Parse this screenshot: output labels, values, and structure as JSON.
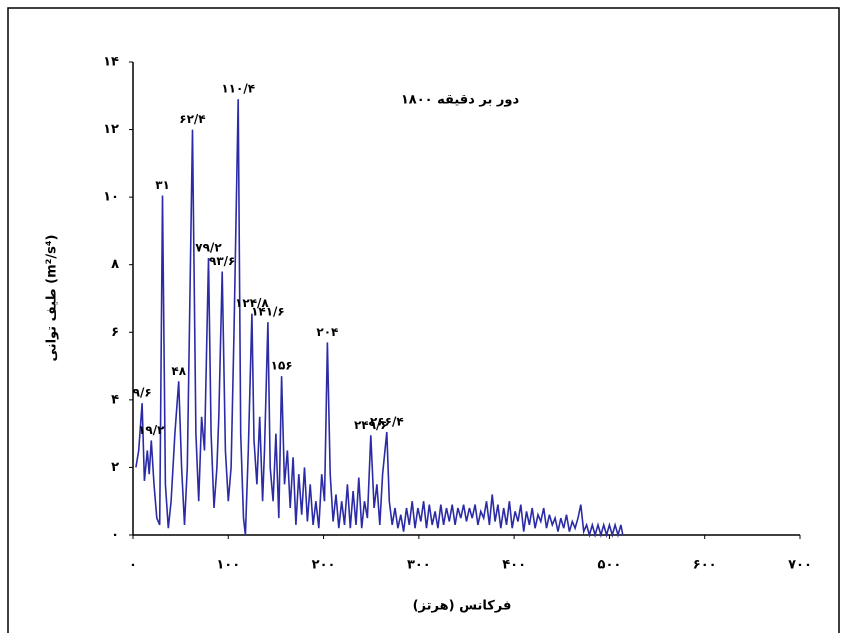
{
  "chart_data": {
    "type": "line",
    "title": "۱۸۰۰ دور بر دقیقه",
    "x_label": "فرکانس (هرتز)",
    "y_label": "طیف توانی (m²/s⁴)",
    "color": "#2b2ba6",
    "x": [
      3,
      6,
      9.6,
      12,
      15,
      17,
      19.2,
      22,
      25,
      28,
      31,
      34,
      37,
      40,
      44,
      48,
      51,
      54,
      57,
      62.4,
      66,
      69,
      72,
      75,
      79.2,
      82,
      85,
      88,
      90,
      93.6,
      97,
      100,
      103,
      106,
      110.4,
      113,
      116,
      118,
      121,
      124.8,
      127,
      130,
      133,
      136,
      138,
      141.6,
      144,
      147,
      150,
      153,
      156,
      159,
      162,
      165,
      168,
      171,
      174,
      177,
      180,
      183,
      186,
      189,
      192,
      195,
      198,
      201,
      204,
      207,
      210,
      213,
      216,
      219,
      222,
      225,
      228,
      231,
      234,
      237,
      240,
      243,
      246,
      249.6,
      253,
      256,
      259,
      262,
      266.4,
      269,
      272,
      275,
      278,
      281,
      284,
      287,
      290,
      293,
      296,
      299,
      302,
      305,
      308,
      311,
      314,
      317,
      320,
      323,
      326,
      329,
      332,
      335,
      338,
      341,
      344,
      347,
      350,
      353,
      356,
      359,
      362,
      365,
      368,
      371,
      374,
      377,
      380,
      383,
      386,
      389,
      392,
      395,
      398,
      401,
      404,
      407,
      410,
      413,
      416,
      419,
      422,
      425,
      428,
      431,
      434,
      437,
      440,
      443,
      446,
      449,
      452,
      455,
      458,
      461,
      464,
      467,
      470,
      473,
      476,
      479,
      482,
      485,
      488,
      491,
      494,
      497,
      500,
      503,
      506,
      509,
      512,
      514
    ],
    "values": [
      2.0,
      2.5,
      3.9,
      1.6,
      2.5,
      1.8,
      2.8,
      1.5,
      0.5,
      0.3,
      10.05,
      1.5,
      0.2,
      1.0,
      3.0,
      4.55,
      2.0,
      0.3,
      2.0,
      12.0,
      3.0,
      1.0,
      3.5,
      2.5,
      8.2,
      3.0,
      0.8,
      2.0,
      3.5,
      7.8,
      2.5,
      1.0,
      2.0,
      6.0,
      12.9,
      3.0,
      0.5,
      0.0,
      2.5,
      6.55,
      2.8,
      1.5,
      3.5,
      1.0,
      2.5,
      6.3,
      2.0,
      1.0,
      3.0,
      0.5,
      4.7,
      1.5,
      2.5,
      0.8,
      2.3,
      0.3,
      1.8,
      0.6,
      2.0,
      0.4,
      1.5,
      0.3,
      1.0,
      0.2,
      1.8,
      1.0,
      5.7,
      1.8,
      0.4,
      1.2,
      0.2,
      1.0,
      0.3,
      1.5,
      0.2,
      1.3,
      0.3,
      1.7,
      0.2,
      1.0,
      0.5,
      2.95,
      0.8,
      1.5,
      0.3,
      1.8,
      3.05,
      1.0,
      0.3,
      0.8,
      0.2,
      0.6,
      0.1,
      0.8,
      0.3,
      1.0,
      0.2,
      0.8,
      0.4,
      1.0,
      0.2,
      0.9,
      0.3,
      0.7,
      0.2,
      0.9,
      0.3,
      0.8,
      0.4,
      0.9,
      0.3,
      0.8,
      0.5,
      0.9,
      0.4,
      0.8,
      0.5,
      0.9,
      0.3,
      0.7,
      0.5,
      1.0,
      0.3,
      1.2,
      0.4,
      0.9,
      0.2,
      0.8,
      0.3,
      1.0,
      0.2,
      0.7,
      0.4,
      0.9,
      0.1,
      0.7,
      0.3,
      0.8,
      0.2,
      0.6,
      0.4,
      0.8,
      0.2,
      0.6,
      0.3,
      0.5,
      0.1,
      0.5,
      0.2,
      0.6,
      0.1,
      0.4,
      0.2,
      0.5,
      0.9,
      0.1,
      0.3,
      0.0,
      0.3,
      0.0,
      0.3,
      0.0,
      0.3,
      0.0,
      0.3,
      0.0,
      0.3,
      0.0,
      0.3,
      0.0
    ],
    "xlim": [
      0,
      700
    ],
    "xticks": [
      {
        "value": 0,
        "label": "۰"
      },
      {
        "value": 100,
        "label": "۱۰۰"
      },
      {
        "value": 200,
        "label": "۲۰۰"
      },
      {
        "value": 300,
        "label": "۳۰۰"
      },
      {
        "value": 400,
        "label": "۴۰۰"
      },
      {
        "value": 500,
        "label": "۵۰۰"
      },
      {
        "value": 600,
        "label": "۶۰۰"
      },
      {
        "value": 700,
        "label": "۷۰۰"
      }
    ],
    "ylim": [
      0,
      14
    ],
    "yticks": [
      {
        "value": 0,
        "label": "۰"
      },
      {
        "value": 2,
        "label": "۲"
      },
      {
        "value": 4,
        "label": "۴"
      },
      {
        "value": 6,
        "label": "۶"
      },
      {
        "value": 8,
        "label": "۸"
      },
      {
        "value": 10,
        "label": "۱۰"
      },
      {
        "value": 12,
        "label": "۱۲"
      },
      {
        "value": 14,
        "label": "۱۴"
      }
    ],
    "annotations": [
      {
        "label": "۹/۶",
        "x": 9.6,
        "y": 3.9
      },
      {
        "label": "۱۹/۲",
        "x": 19.2,
        "y": 2.8
      },
      {
        "label": "۳۱",
        "x": 31,
        "y": 10.05
      },
      {
        "label": "۴۸",
        "x": 48,
        "y": 4.55
      },
      {
        "label": "۶۲/۴",
        "x": 62.4,
        "y": 12.0
      },
      {
        "label": "۷۹/۲",
        "x": 79.2,
        "y": 8.2
      },
      {
        "label": "۹۳/۶",
        "x": 93.6,
        "y": 7.8
      },
      {
        "label": "۱۱۰/۴",
        "x": 110.4,
        "y": 12.9
      },
      {
        "label": "۱۲۴/۸",
        "x": 124.8,
        "y": 6.55
      },
      {
        "label": "۱۴۱/۶",
        "x": 141.6,
        "y": 6.3
      },
      {
        "label": "۱۵۶",
        "x": 156,
        "y": 4.7
      },
      {
        "label": "۲۰۴",
        "x": 204,
        "y": 5.7
      },
      {
        "label": "۲۴۹/۶",
        "x": 249.6,
        "y": 2.95
      },
      {
        "label": "۲۶۶/۴",
        "x": 266.4,
        "y": 3.05
      }
    ]
  }
}
